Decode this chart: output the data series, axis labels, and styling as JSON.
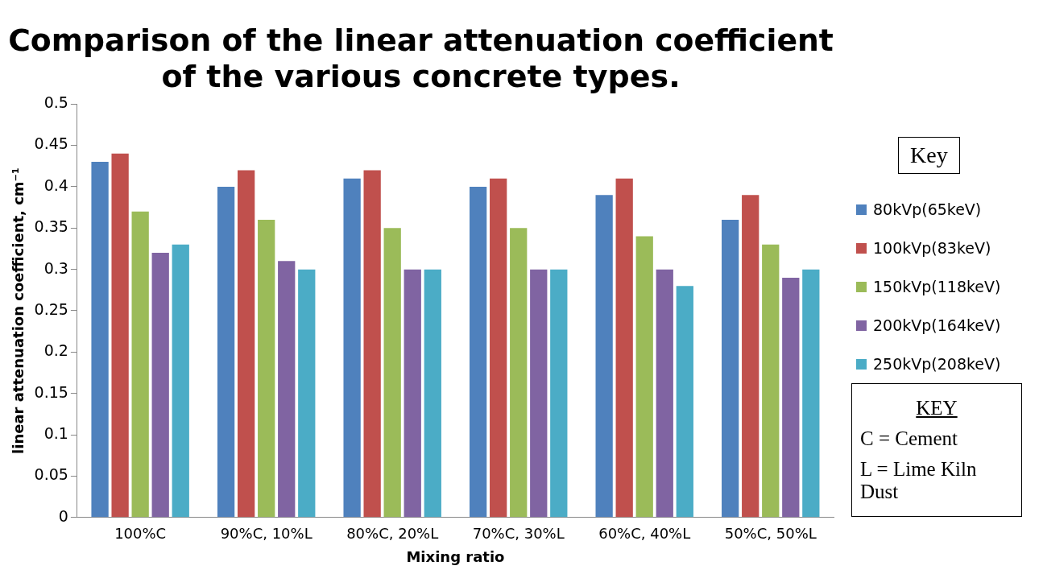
{
  "chart_data": {
    "type": "bar",
    "title": [
      "Comparison of the linear attenuation coefficient",
      "of the various concrete types."
    ],
    "xlabel": "Mixing ratio",
    "ylabel": "linear attenuation coefficient, cm⁻¹",
    "categories": [
      "100%C",
      "90%C, 10%L",
      "80%C, 20%L",
      "70%C, 30%L",
      "60%C, 40%L",
      "50%C, 50%L"
    ],
    "series": [
      {
        "name": "80kVp(65keV)",
        "color": "#4f81bd",
        "values": [
          0.43,
          0.4,
          0.41,
          0.4,
          0.39,
          0.36
        ]
      },
      {
        "name": "100kVp(83keV)",
        "color": "#c0504d",
        "values": [
          0.44,
          0.42,
          0.42,
          0.41,
          0.41,
          0.39
        ]
      },
      {
        "name": "150kVp(118keV)",
        "color": "#9bbb59",
        "values": [
          0.37,
          0.36,
          0.35,
          0.35,
          0.34,
          0.33
        ]
      },
      {
        "name": "200kVp(164keV)",
        "color": "#8064a2",
        "values": [
          0.32,
          0.31,
          0.3,
          0.3,
          0.3,
          0.29
        ]
      },
      {
        "name": "250kVp(208keV)",
        "color": "#4bacc6",
        "values": [
          0.33,
          0.3,
          0.3,
          0.3,
          0.28,
          0.3
        ]
      }
    ],
    "ylim": [
      0,
      0.5
    ],
    "yticks": [
      0,
      0.05,
      0.1,
      0.15,
      0.2,
      0.25,
      0.3,
      0.35,
      0.4,
      0.45,
      0.5
    ],
    "grid": false,
    "legend": "right",
    "legend_title": "Key",
    "annotations": [
      "KEY",
      "C = Cement",
      "L = Lime Kiln Dust"
    ]
  }
}
